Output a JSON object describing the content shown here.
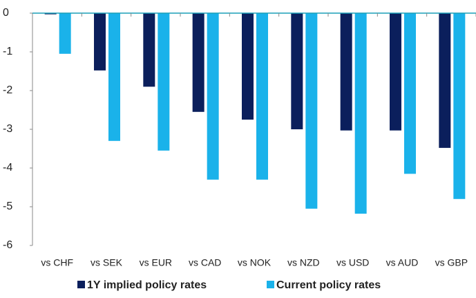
{
  "chart_data": {
    "type": "bar",
    "categories": [
      "vs CHF",
      "vs SEK",
      "vs EUR",
      "vs CAD",
      "vs NOK",
      "vs NZD",
      "vs USD",
      "vs AUD",
      "vs GBP"
    ],
    "series": [
      {
        "name": "1Y implied policy rates",
        "color": "#0b1f5c",
        "values": [
          -0.03,
          -1.48,
          -1.9,
          -2.55,
          -2.75,
          -3.0,
          -3.03,
          -3.03,
          -3.48
        ]
      },
      {
        "name": "Current policy rates",
        "color": "#1ab2ea",
        "values": [
          -1.05,
          -3.3,
          -3.55,
          -4.3,
          -4.3,
          -5.05,
          -5.18,
          -4.15,
          -4.8
        ]
      }
    ],
    "ylim": [
      -6,
      0
    ],
    "yticks": [
      0,
      -1,
      -2,
      -3,
      -4,
      -5,
      -6
    ],
    "axis_color": "#1a9fb8"
  }
}
